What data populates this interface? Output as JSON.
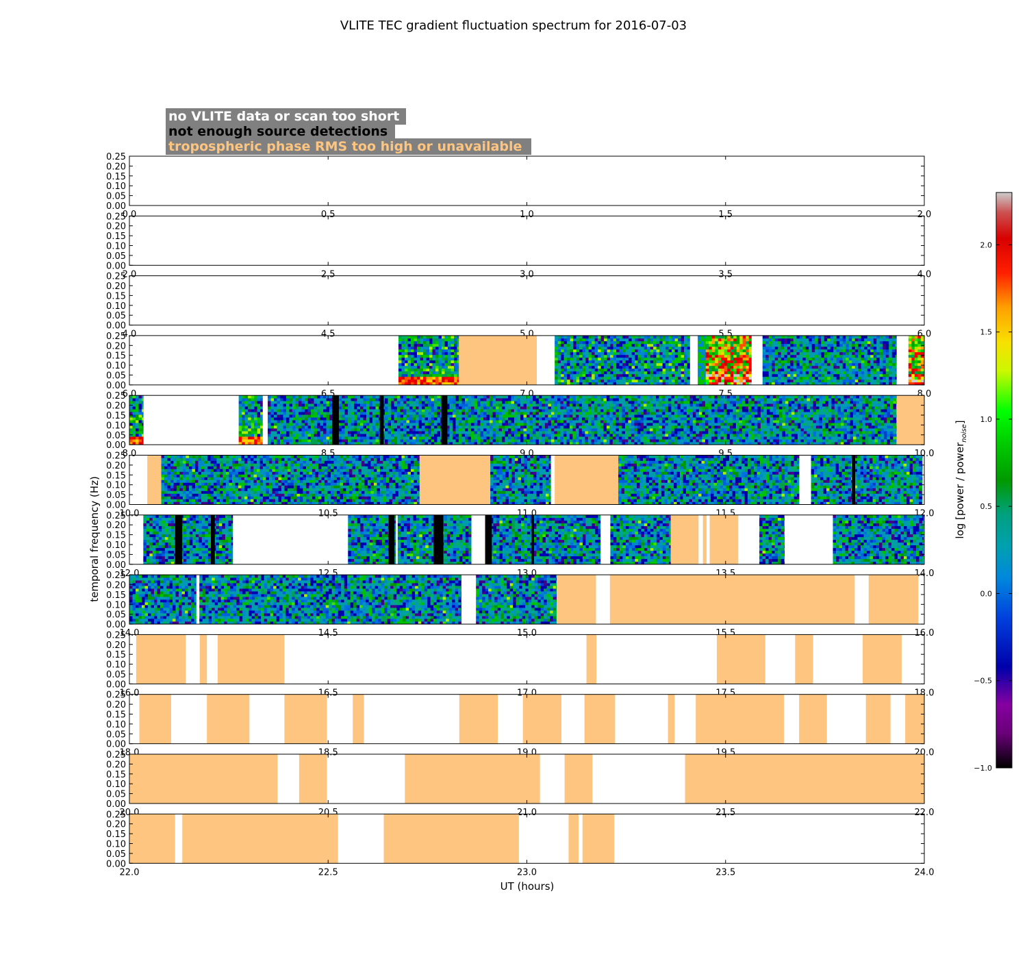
{
  "chart_data": {
    "type": "heatmap",
    "title": "VLITE TEC gradient fluctuation spectrum for 2016-07-03",
    "xlabel": "UT (hours)",
    "ylabel": "temporal frequency (Hz)",
    "ylim": [
      0,
      0.25
    ],
    "yticks": [
      "0.00",
      "0.05",
      "0.10",
      "0.15",
      "0.20",
      "0.25"
    ],
    "colorbar": {
      "label_main": "log [power / power",
      "label_sub": "noise",
      "label_end": "]",
      "range": [
        -1.0,
        2.3
      ],
      "ticks": [
        "−1.0",
        "−0.5",
        "0.0",
        "0.5",
        "1.0",
        "1.5",
        "2.0"
      ],
      "tick_values": [
        -1.0,
        -0.5,
        0.0,
        0.5,
        1.0,
        1.5,
        2.0
      ],
      "colormap": "nipy_spectral"
    },
    "legend": [
      {
        "text": "no VLITE data or scan too short",
        "color": "#ffffff",
        "meaning": "white"
      },
      {
        "text": "not enough source detections",
        "color": "#000000",
        "meaning": "black"
      },
      {
        "text": "tropospheric phase RMS too high or unavailable",
        "color": "#fdc57f",
        "meaning": "orange"
      }
    ],
    "legend_box_color": "#808080",
    "orange_color": "#fdc57f",
    "panels": [
      {
        "range": [
          0,
          2
        ],
        "ticks": [
          "0.0",
          "0.5",
          "1.0",
          "1.5",
          "2.0"
        ],
        "spectrum": [],
        "flagged": [],
        "missing_detections": []
      },
      {
        "range": [
          2,
          4
        ],
        "ticks": [
          "2.0",
          "2.5",
          "3.0",
          "3.5",
          "4.0"
        ],
        "spectrum": [],
        "flagged": [],
        "missing_detections": []
      },
      {
        "range": [
          4,
          6
        ],
        "ticks": [
          "4.0",
          "4.5",
          "5.0",
          "5.5",
          "6.0"
        ],
        "spectrum": [],
        "flagged": [],
        "missing_detections": []
      },
      {
        "range": [
          6,
          8
        ],
        "ticks": [
          "6.0",
          "6.5",
          "7.0",
          "7.5",
          "8.0"
        ],
        "spectrum": [
          {
            "start": 6.677,
            "end": 6.829,
            "activity": "high-low"
          },
          {
            "start": 7.07,
            "end": 7.41,
            "activity": "mid"
          },
          {
            "start": 7.43,
            "end": 7.465,
            "activity": "low-edge"
          },
          {
            "start": 7.45,
            "end": 7.565,
            "activity": "very-high"
          },
          {
            "start": 7.593,
            "end": 7.93,
            "activity": "low"
          },
          {
            "start": 7.96,
            "end": 8.0,
            "activity": "very-high"
          }
        ],
        "flagged": [
          [
            6.829,
            7.025
          ]
        ],
        "missing_detections": []
      },
      {
        "range": [
          8,
          10
        ],
        "ticks": [
          "8.0",
          "8.5",
          "9.0",
          "9.5",
          "10.0"
        ],
        "spectrum": [
          {
            "start": 8.0,
            "end": 8.035,
            "activity": "high-low"
          },
          {
            "start": 8.275,
            "end": 8.335,
            "activity": "high-low"
          },
          {
            "start": 8.348,
            "end": 9.03,
            "activity": "low"
          },
          {
            "start": 9.03,
            "end": 9.93,
            "activity": "low"
          }
        ],
        "flagged": [
          [
            9.93,
            10.0
          ]
        ],
        "missing_detections": [
          [
            8.51,
            8.527
          ],
          [
            8.63,
            8.64
          ],
          [
            8.785,
            8.8
          ]
        ]
      },
      {
        "range": [
          10,
          12
        ],
        "ticks": [
          "10.0",
          "10.5",
          "11.0",
          "11.5",
          "12.0"
        ],
        "spectrum": [
          {
            "start": 10.08,
            "end": 10.73,
            "activity": "low"
          },
          {
            "start": 10.9,
            "end": 11.06,
            "activity": "low"
          },
          {
            "start": 11.23,
            "end": 11.685,
            "activity": "low"
          },
          {
            "start": 11.715,
            "end": 11.995,
            "activity": "low"
          }
        ],
        "flagged": [
          [
            10.045,
            10.08
          ],
          [
            10.73,
            10.908
          ],
          [
            11.07,
            11.23
          ]
        ],
        "missing_detections": [
          [
            11.818,
            11.826
          ]
        ]
      },
      {
        "range": [
          12,
          14
        ],
        "ticks": [
          "12.0",
          "12.5",
          "13.0",
          "13.5",
          "14.0"
        ],
        "spectrum": [
          {
            "start": 12.035,
            "end": 12.208,
            "activity": "low"
          },
          {
            "start": 12.21,
            "end": 12.26,
            "activity": "low"
          },
          {
            "start": 12.55,
            "end": 12.67,
            "activity": "low"
          },
          {
            "start": 12.675,
            "end": 12.86,
            "activity": "low"
          },
          {
            "start": 12.9,
            "end": 13.185,
            "activity": "low"
          },
          {
            "start": 13.21,
            "end": 13.362,
            "activity": "low"
          },
          {
            "start": 13.585,
            "end": 13.648,
            "activity": "low"
          },
          {
            "start": 13.77,
            "end": 13.998,
            "activity": "low"
          }
        ],
        "flagged": [
          [
            13.362,
            13.432
          ],
          [
            13.443,
            13.452
          ],
          [
            13.46,
            13.532
          ]
        ],
        "missing_detections": [
          [
            12.115,
            12.133
          ],
          [
            12.205,
            12.215
          ],
          [
            12.652,
            12.667
          ],
          [
            12.765,
            12.79
          ],
          [
            12.895,
            12.912
          ],
          [
            13.012,
            13.018
          ]
        ]
      },
      {
        "range": [
          14,
          16
        ],
        "ticks": [
          "14.0",
          "14.5",
          "15.0",
          "15.5",
          "16.0"
        ],
        "spectrum": [
          {
            "start": 14.0,
            "end": 14.168,
            "activity": "low"
          },
          {
            "start": 14.176,
            "end": 14.835,
            "activity": "low"
          },
          {
            "start": 14.872,
            "end": 15.075,
            "activity": "low"
          }
        ],
        "flagged": [
          [
            15.075,
            15.174
          ],
          [
            15.209,
            15.825
          ],
          [
            15.86,
            15.985
          ]
        ],
        "missing_detections": []
      },
      {
        "range": [
          16,
          18
        ],
        "ticks": [
          "16.0",
          "16.5",
          "17.0",
          "17.5",
          "18.0"
        ],
        "spectrum": [],
        "flagged": [
          [
            16.017,
            16.142
          ],
          [
            16.177,
            16.195
          ],
          [
            16.222,
            16.39
          ],
          [
            17.15,
            17.175
          ],
          [
            17.478,
            17.6
          ],
          [
            17.675,
            17.72
          ],
          [
            17.845,
            17.943
          ]
        ],
        "missing_detections": []
      },
      {
        "range": [
          18,
          20
        ],
        "ticks": [
          "18.0",
          "18.5",
          "19.0",
          "19.5",
          "20.0"
        ],
        "spectrum": [],
        "flagged": [
          [
            18.025,
            18.105
          ],
          [
            18.195,
            18.302
          ],
          [
            18.39,
            18.497
          ],
          [
            18.562,
            18.59
          ],
          [
            18.83,
            18.927
          ],
          [
            18.99,
            19.087
          ],
          [
            19.145,
            19.222
          ],
          [
            19.355,
            19.372
          ],
          [
            19.425,
            19.647
          ],
          [
            19.685,
            19.755
          ],
          [
            19.853,
            19.915
          ],
          [
            19.952,
            20.0
          ]
        ],
        "missing_detections": []
      },
      {
        "range": [
          20,
          22
        ],
        "ticks": [
          "20.0",
          "20.5",
          "21.0",
          "21.5",
          "22.0"
        ],
        "spectrum": [],
        "flagged": [
          [
            20.0,
            20.373
          ],
          [
            20.427,
            20.497
          ],
          [
            20.693,
            21.033
          ],
          [
            21.095,
            21.165
          ],
          [
            21.398,
            22.0
          ]
        ],
        "missing_detections": []
      },
      {
        "range": [
          22,
          24
        ],
        "ticks": [
          "22.0",
          "22.5",
          "23.0",
          "23.5",
          "24.0"
        ],
        "spectrum": [],
        "flagged": [
          [
            22.0,
            22.115
          ],
          [
            22.133,
            22.525
          ],
          [
            22.64,
            22.98
          ],
          [
            23.105,
            23.13
          ],
          [
            23.14,
            23.22
          ]
        ],
        "missing_detections": []
      }
    ]
  }
}
